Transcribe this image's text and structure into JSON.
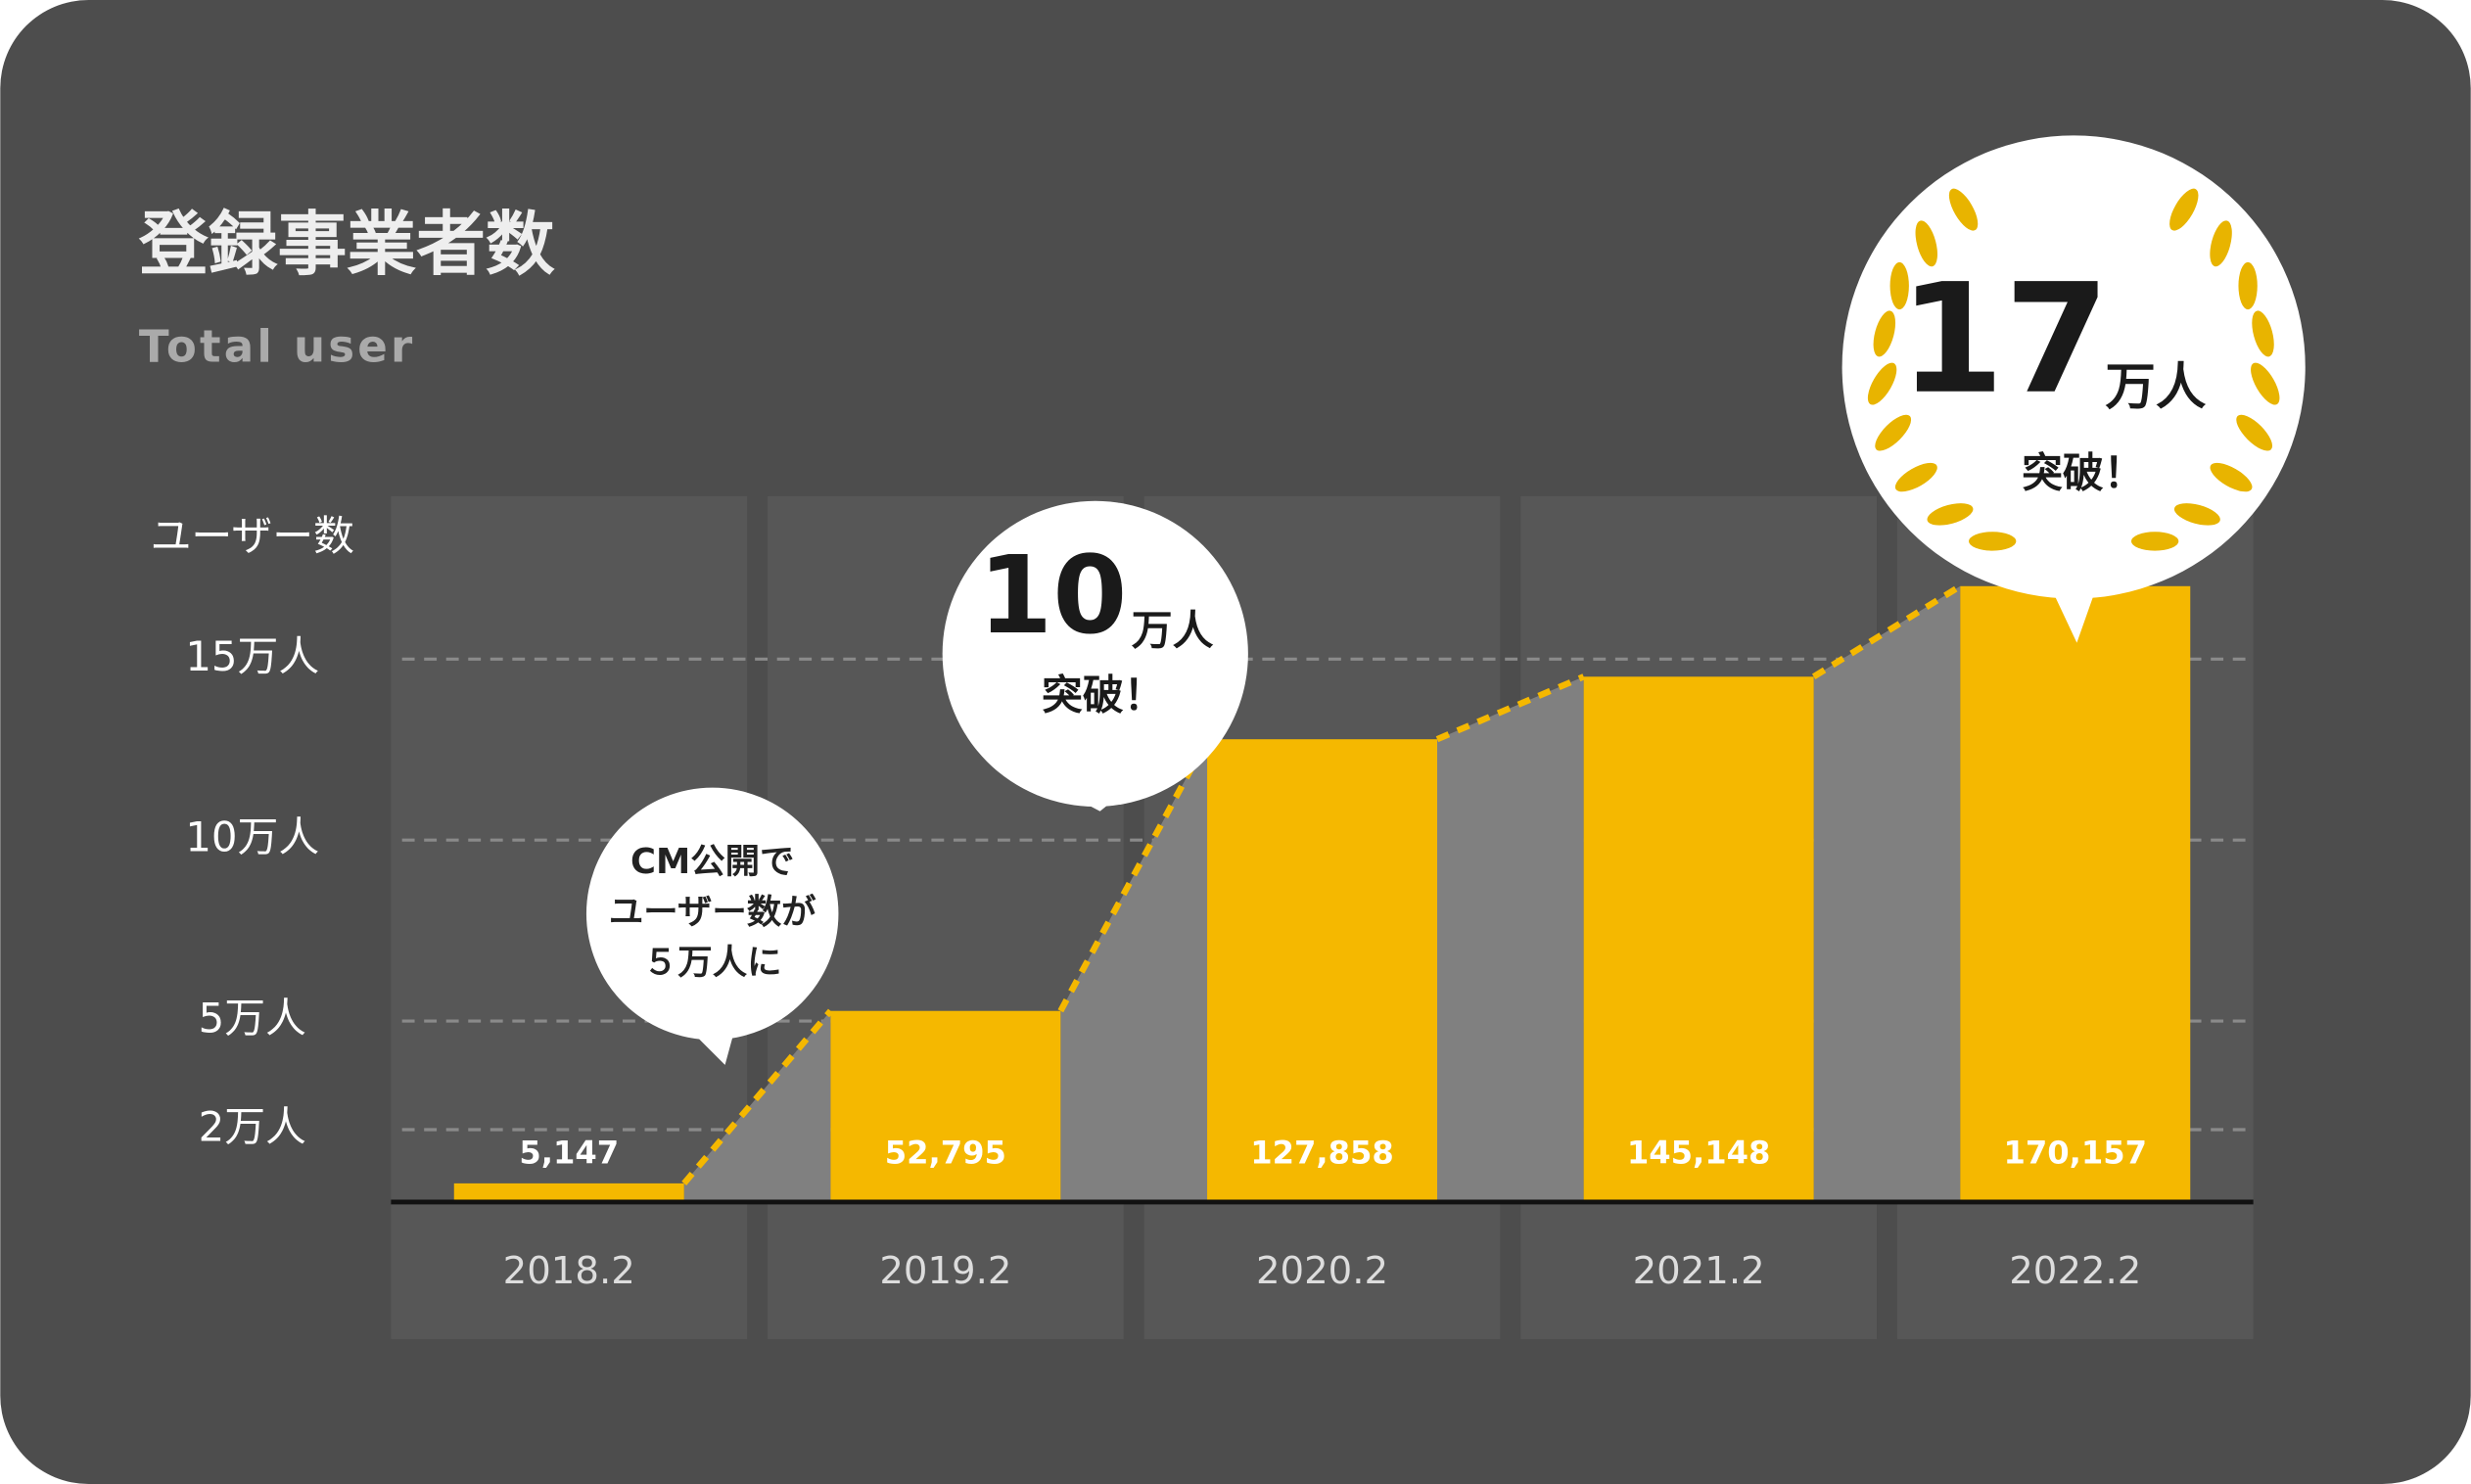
{
  "chart_data": {
    "type": "bar",
    "title": "登録事業者数",
    "subtitle": "Total user",
    "y_label": "ユーザー数",
    "categories": [
      "2018.2",
      "2019.2",
      "2020.2",
      "2021.2",
      "2022.2"
    ],
    "values": [
      5147,
      52795,
      127858,
      145148,
      170157
    ],
    "value_labels": [
      "5,147",
      "52,795",
      "127,858",
      "145,148",
      "170,157"
    ],
    "color": "#f5b800",
    "ylim": [
      0,
      195000
    ],
    "yticks": [
      {
        "value": 20000,
        "label": "2万人"
      },
      {
        "value": 50000,
        "label": "5万人"
      },
      {
        "value": 100000,
        "label": "10万人"
      },
      {
        "value": 150000,
        "label": "15万人"
      }
    ],
    "grid": true,
    "annotations": [
      {
        "lines": [
          "CM公開で",
          "ユーザー数が",
          "５万人に"
        ]
      },
      {
        "number": "10",
        "unit": "万人",
        "text": "突破！"
      },
      {
        "number": "17",
        "unit": "万人",
        "text": "突破！"
      }
    ]
  }
}
